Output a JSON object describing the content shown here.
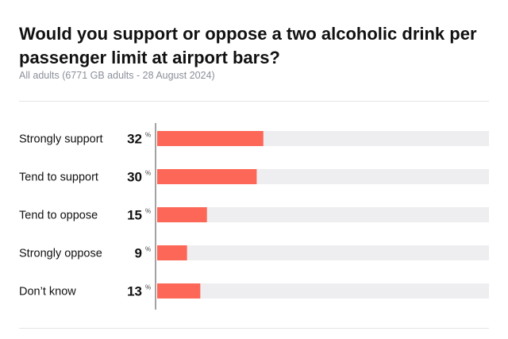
{
  "chart_data": {
    "type": "bar",
    "orientation": "horizontal",
    "title": "Would you support or oppose a two alcoholic drink per passenger limit at airport bars?",
    "subtitle": "All adults (6771 GB adults - 28 August 2024)",
    "categories": [
      "Strongly support",
      "Tend to support",
      "Tend to oppose",
      "Strongly oppose",
      "Don’t know"
    ],
    "values": [
      32,
      30,
      15,
      9,
      13
    ],
    "value_unit": "%",
    "xlim": [
      0,
      100
    ],
    "grid": false,
    "legend": "none",
    "colors": {
      "bar": "#fd6758",
      "track": "#eeeef1",
      "axis": "#444444"
    }
  }
}
